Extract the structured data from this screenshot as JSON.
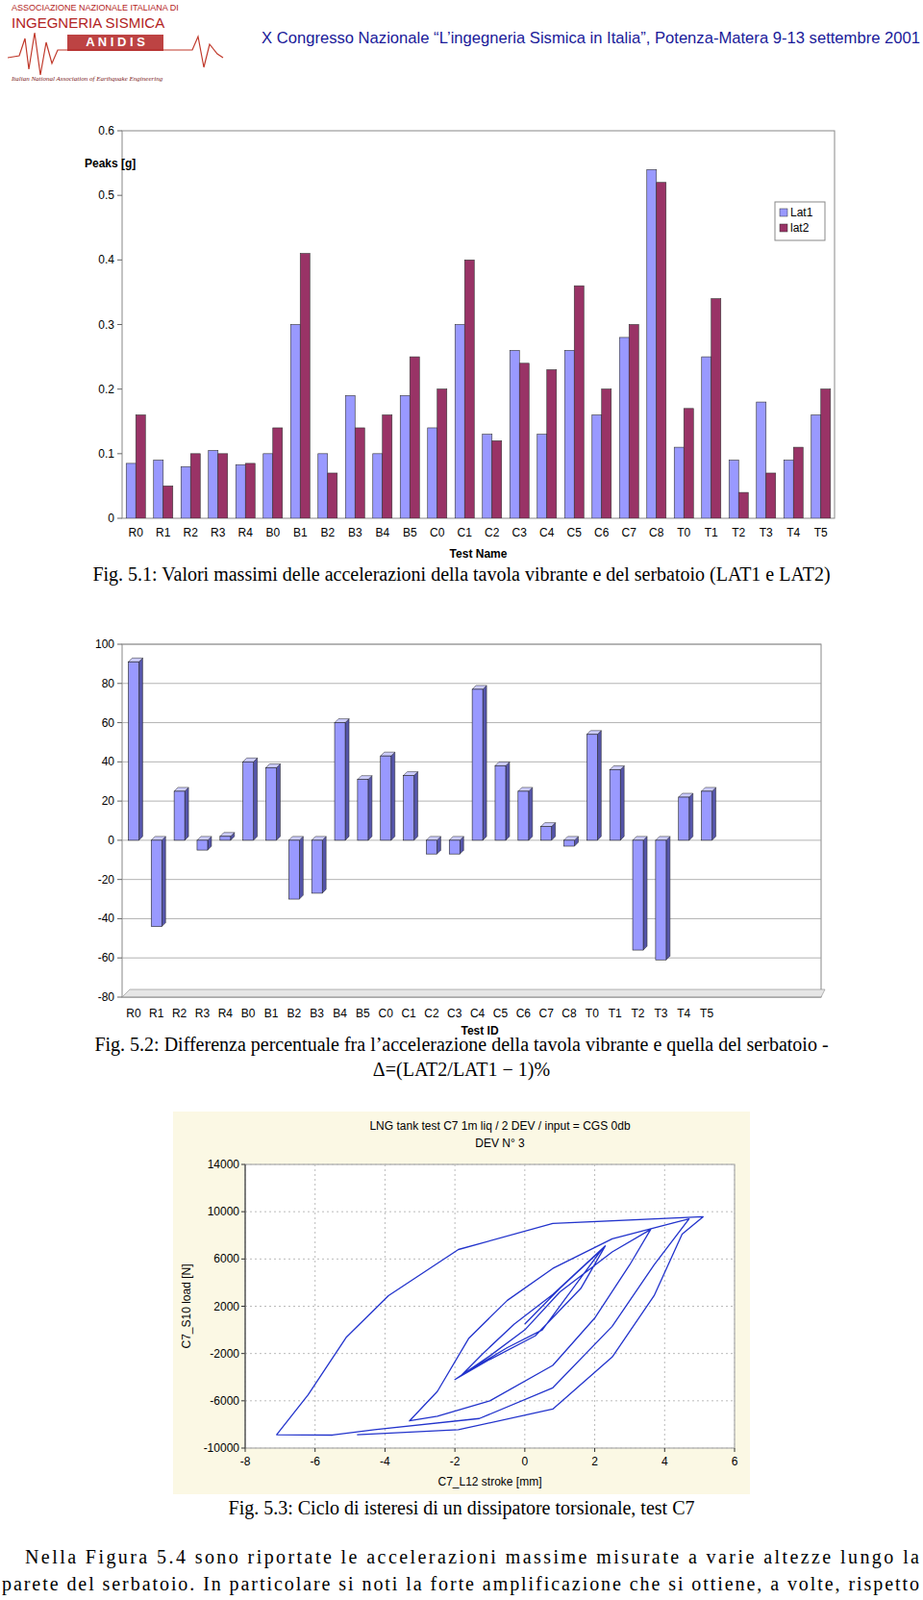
{
  "header": {
    "logo": [
      "ASSOCIAZIONE NAZIONALE ITALIANA DI",
      "INGEGNERIA  SISMICA",
      "A N I D I S",
      "Italian National Association of Earthquake Engineering"
    ],
    "conference": "X Congresso Nazionale “L’ingegneria Sismica in Italia”, Potenza-Matera 9-13 settembre 2001"
  },
  "chart_data": [
    {
      "type": "bar",
      "y_label": "Peaks [g]",
      "x_label": "Test Name",
      "categories": [
        "R0",
        "R1",
        "R2",
        "R3",
        "R4",
        "B0",
        "B1",
        "B2",
        "B3",
        "B4",
        "B5",
        "C0",
        "C1",
        "C2",
        "C3",
        "C4",
        "C5",
        "C6",
        "C7",
        "C8",
        "T0",
        "T1",
        "T2",
        "T3",
        "T4",
        "T5"
      ],
      "series": [
        {
          "name": "Lat1",
          "color": "#9999ff",
          "values": [
            0.085,
            0.09,
            0.08,
            0.105,
            0.083,
            0.1,
            0.3,
            0.1,
            0.19,
            0.1,
            0.19,
            0.14,
            0.3,
            0.13,
            0.26,
            0.13,
            0.26,
            0.16,
            0.28,
            0.54,
            0.11,
            0.25,
            0.09,
            0.18,
            0.09,
            0.16
          ]
        },
        {
          "name": "lat2",
          "color": "#993366",
          "values": [
            0.16,
            0.05,
            0.1,
            0.1,
            0.085,
            0.14,
            0.41,
            0.07,
            0.14,
            0.16,
            0.25,
            0.2,
            0.4,
            0.12,
            0.24,
            0.23,
            0.36,
            0.2,
            0.3,
            0.52,
            0.17,
            0.34,
            0.04,
            0.07,
            0.11,
            0.2
          ]
        }
      ],
      "ylim": [
        0,
        0.6
      ],
      "yticks": [
        0,
        0.1,
        0.2,
        0.3,
        0.4,
        0.5,
        0.6
      ],
      "grid": false,
      "legend": "upper right"
    },
    {
      "type": "bar",
      "x_label": "Test ID",
      "categories": [
        "R0",
        "R1",
        "R2",
        "R3",
        "R4",
        "B0",
        "B1",
        "B2",
        "B3",
        "B4",
        "B5",
        "C0",
        "C1",
        "C2",
        "C3",
        "C4",
        "C5",
        "C6",
        "C7",
        "C8",
        "T0",
        "T1",
        "T2",
        "T3",
        "T4",
        "T5"
      ],
      "values": [
        91,
        -44,
        25,
        -5,
        2,
        40,
        37,
        -30,
        -27,
        60,
        31,
        43,
        33,
        -7,
        -7,
        77,
        38,
        25,
        7,
        -3,
        54,
        36,
        -56,
        -61,
        22,
        25
      ],
      "color": "#9999ff",
      "ylim": [
        -80,
        100
      ],
      "yticks": [
        -80,
        -60,
        -40,
        -20,
        0,
        20,
        40,
        60,
        80,
        100
      ],
      "grid": true
    },
    {
      "type": "line",
      "title": "LNG tank  test C7  1m liq / 2 DEV / input = CGS 0db",
      "subtitle": "DEV N° 3",
      "x_label": "C7_L12 stroke [mm]",
      "y_label": "C7_S10 load [N]",
      "x": [
        0,
        1,
        2.2,
        1.5,
        0.5,
        -0.5,
        -1.8,
        -1.2,
        -0.3,
        0.8,
        2.3,
        1.6,
        0.3,
        -1,
        -2,
        -1,
        0,
        1,
        2.5,
        3.6,
        3,
        2,
        0.8,
        -1,
        -2.5,
        -3.3,
        -2.5,
        -1.6,
        -0.5,
        0.8,
        2.5,
        4.7,
        3.7,
        2.5,
        0.8,
        -1.3,
        -4.3,
        -5.5,
        -7.1,
        -6.2,
        -5.1,
        -3.9,
        -1.9,
        0.8,
        5.1,
        4.5,
        3.7,
        2.5,
        0.8,
        -1.9,
        -4.8
      ],
      "values": [
        500,
        3500,
        6800,
        4000,
        0,
        -1500,
        -3800,
        -2000,
        500,
        3000,
        7100,
        3500,
        -500,
        -2500,
        -4200,
        -2200,
        0,
        3200,
        6600,
        8500,
        5500,
        1000,
        -3000,
        -6000,
        -7300,
        -7700,
        -5200,
        -700,
        2500,
        5200,
        7700,
        9400,
        5500,
        300,
        -4900,
        -7500,
        -8450,
        -8900,
        -8870,
        -5500,
        -600,
        2900,
        6800,
        9000,
        9570,
        8100,
        2900,
        -2300,
        -6700,
        -8450,
        -8870
      ],
      "color": "#2233cc",
      "line_style": "solid",
      "xlim": [
        -8,
        6
      ],
      "xticks": [
        -8,
        -6,
        -4,
        -2,
        0,
        2,
        4,
        6
      ],
      "ylim": [
        -10000,
        14000
      ],
      "yticks": [
        -10000,
        -6000,
        -2000,
        2000,
        6000,
        10000,
        14000
      ],
      "grid": true
    }
  ],
  "captions": [
    [
      "Fig. 5.1: Valori massimi delle accelerazioni della tavola vibrante e del serbatoio (LAT1 e LAT2)"
    ],
    [
      "Fig. 5.2: Differenza percentuale fra l’accelerazione della tavola vibrante e quella del serbatoio -",
      "Δ=(LAT2/LAT1 − 1)%"
    ],
    [
      "Fig. 5.3: Ciclo di isteresi di un dissipatore torsionale, test C7"
    ]
  ],
  "body": [
    "Nella Figura 5.4 sono riportate le accelerazioni massime misurate a varie altezze lungo la",
    "parete del serbatoio. In particolare si noti la forte amplificazione che si ottiene, a volte, rispetto"
  ]
}
